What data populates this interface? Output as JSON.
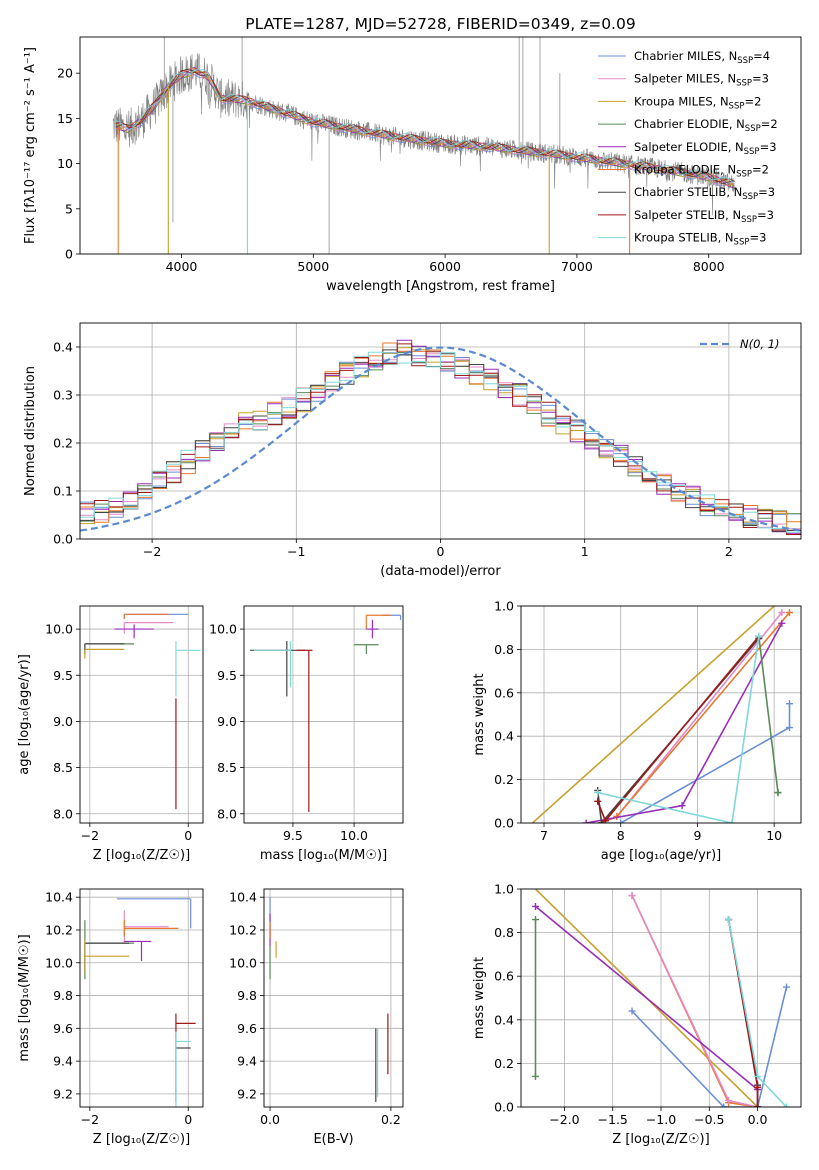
{
  "colors": [
    "#6a8fd8",
    "#e28bc8",
    "#c9a02c",
    "#5a8a5a",
    "#9a2db8",
    "#e8772e",
    "#444444",
    "#a01818",
    "#7fd8dc"
  ],
  "observed_color": "#808080",
  "gauss_color": "#5b8ad0",
  "chart_data": [
    {
      "type": "line",
      "title": "PLATE=1287, MJD=52728, FIBERID=0349, z=0.09",
      "xlabel": "wavelength [Angstrom, rest frame]",
      "ylabel": "Flux [fλ10⁻¹⁷ erg cm⁻² s⁻¹ A⁻¹]",
      "xlim": [
        3230,
        8700
      ],
      "ylim": [
        0,
        24
      ],
      "xticks": [
        4000,
        5000,
        6000,
        7000,
        8000
      ],
      "yticks": [
        0,
        5,
        10,
        15,
        20
      ],
      "grid": false,
      "legend_position": "top-right",
      "legend": [
        "Chabrier MILES, N_SSP=4",
        "Salpeter MILES, N_SSP=3",
        "Kroupa MILES, N_SSP=2",
        "Chabrier ELODIE, N_SSP=2",
        "Salpeter ELODIE, N_SSP=3",
        "Kroupa ELODIE, N_SSP=2",
        "Chabrier STELIB, N_SSP=3",
        "Salpeter STELIB, N_SSP=3",
        "Kroupa STELIB, N_SSP=3"
      ],
      "continuum": {
        "x": [
          3500,
          3600,
          3700,
          3800,
          3900,
          4000,
          4100,
          4200,
          4300,
          4500,
          4700,
          5000,
          5300,
          5600,
          6000,
          6300,
          6600,
          6900,
          7200,
          7500,
          7800,
          8000,
          8200
        ],
        "y": [
          14.2,
          13.8,
          14.8,
          16.5,
          18.5,
          19.8,
          20.3,
          19.6,
          17.2,
          17.0,
          16.0,
          14.6,
          13.8,
          13.0,
          12.2,
          11.9,
          11.4,
          10.9,
          10.3,
          9.7,
          9.0,
          8.5,
          7.6
        ]
      }
    },
    {
      "type": "step",
      "xlabel": "(data-model)/error",
      "ylabel": "Normed distribution",
      "xlim": [
        -2.5,
        2.5
      ],
      "ylim": [
        0,
        0.45
      ],
      "xticks": [
        -2,
        -1,
        0,
        1,
        2
      ],
      "yticks": [
        0.0,
        0.1,
        0.2,
        0.3,
        0.4
      ],
      "grid": true,
      "legend_position": "top-right",
      "legend": [
        "N(0, 1)"
      ],
      "bin_centers": [
        -2.45,
        -2.35,
        -2.25,
        -2.15,
        -2.05,
        -1.95,
        -1.85,
        -1.75,
        -1.65,
        -1.55,
        -1.45,
        -1.35,
        -1.25,
        -1.15,
        -1.05,
        -0.95,
        -0.85,
        -0.75,
        -0.65,
        -0.55,
        -0.45,
        -0.35,
        -0.25,
        -0.15,
        -0.05,
        0.05,
        0.15,
        0.25,
        0.35,
        0.45,
        0.55,
        0.65,
        0.75,
        0.85,
        0.95,
        1.05,
        1.15,
        1.25,
        1.35,
        1.45,
        1.55,
        1.65,
        1.75,
        1.85,
        1.95,
        2.05,
        2.15,
        2.25,
        2.35,
        2.45
      ],
      "envelope": [
        0.055,
        0.06,
        0.07,
        0.085,
        0.1,
        0.12,
        0.14,
        0.16,
        0.18,
        0.2,
        0.22,
        0.24,
        0.25,
        0.26,
        0.275,
        0.29,
        0.31,
        0.33,
        0.345,
        0.36,
        0.375,
        0.385,
        0.39,
        0.38,
        0.37,
        0.365,
        0.355,
        0.34,
        0.33,
        0.315,
        0.3,
        0.28,
        0.26,
        0.24,
        0.225,
        0.205,
        0.19,
        0.17,
        0.15,
        0.13,
        0.115,
        0.1,
        0.085,
        0.072,
        0.06,
        0.05,
        0.045,
        0.04,
        0.035,
        0.03
      ]
    },
    {
      "type": "errorbar",
      "xlabel": "Z [log₁₀(Z/Z☉)]",
      "ylabel": "age  [log₁₀(age/yr)]",
      "xlim": [
        -2.2,
        0.3
      ],
      "ylim": [
        7.9,
        10.25
      ],
      "xticks": [
        -2,
        0
      ],
      "yticks": [
        8.0,
        8.5,
        9.0,
        9.5,
        10.0
      ],
      "grid": true,
      "points": [
        {
          "c": 0,
          "x": -1.3,
          "y": 10.16,
          "xe": [
            0,
            1.3
          ],
          "ye": [
            0.05,
            0
          ]
        },
        {
          "c": 1,
          "x": -1.3,
          "y": 10.07,
          "xe": [
            0,
            1.0
          ],
          "ye": [
            0.12,
            0
          ]
        },
        {
          "c": 5,
          "x": -1.3,
          "y": 10.16,
          "xe": [
            0,
            0.9
          ],
          "ye": [
            0.05,
            0
          ]
        },
        {
          "c": 4,
          "x": -1.1,
          "y": 10.0,
          "xe": [
            0.4,
            0.4
          ],
          "ye": [
            0.1,
            0.05
          ]
        },
        {
          "c": 3,
          "x": -2.1,
          "y": 9.84,
          "xe": [
            0,
            1.0
          ],
          "ye": [
            0.1,
            0
          ]
        },
        {
          "c": 6,
          "x": -2.1,
          "y": 9.84,
          "xe": [
            0,
            0.8
          ],
          "ye": [
            0.12,
            0
          ]
        },
        {
          "c": 2,
          "x": -2.1,
          "y": 9.78,
          "xe": [
            0,
            0.8
          ],
          "ye": [
            0.1,
            0
          ]
        },
        {
          "c": 8,
          "x": -0.25,
          "y": 9.77,
          "xe": [
            0,
            0.5
          ],
          "ye": [
            0.5,
            0.1
          ]
        },
        {
          "c": 7,
          "x": -0.25,
          "y": 8.95,
          "xe": [
            0,
            0
          ],
          "ye": [
            0.9,
            0.3
          ]
        }
      ]
    },
    {
      "type": "errorbar",
      "xlabel": "mass [log₁₀(M/M☉)]",
      "xlim": [
        9.1,
        10.4
      ],
      "ylim": [
        7.9,
        10.25
      ],
      "xticks": [
        9.5,
        10.0
      ],
      "yticks": [
        8.0,
        8.5,
        9.0,
        9.5,
        10.0
      ],
      "grid": true,
      "points": [
        {
          "c": 0,
          "x": 10.38,
          "y": 10.15,
          "xe": [
            0.15,
            0
          ],
          "ye": [
            0.05,
            0
          ]
        },
        {
          "c": 5,
          "x": 10.1,
          "y": 10.15,
          "xe": [
            0,
            0.2
          ],
          "ye": [
            0.15,
            0
          ]
        },
        {
          "c": 4,
          "x": 10.15,
          "y": 10.0,
          "xe": [
            0.05,
            0.05
          ],
          "ye": [
            0.1,
            0.1
          ]
        },
        {
          "c": 3,
          "x": 10.1,
          "y": 9.83,
          "xe": [
            0.1,
            0.1
          ],
          "ye": [
            0.1,
            0
          ]
        },
        {
          "c": 6,
          "x": 9.45,
          "y": 9.77,
          "xe": [
            0.3,
            0.15
          ],
          "ye": [
            0.5,
            0.1
          ]
        },
        {
          "c": 8,
          "x": 9.48,
          "y": 9.77,
          "xe": [
            0.3,
            0
          ],
          "ye": [
            0.4,
            0.1
          ]
        },
        {
          "c": 7,
          "x": 9.63,
          "y": 9.77,
          "xe": [
            0.1,
            0.03
          ],
          "ye": [
            1.75,
            0
          ]
        }
      ]
    },
    {
      "type": "line",
      "xlabel": "age  [log₁₀(age/yr)]",
      "ylabel": "mass weight",
      "xlim": [
        6.7,
        10.35
      ],
      "ylim": [
        0,
        1
      ],
      "xticks": [
        7,
        8,
        9,
        10
      ],
      "yticks": [
        0.0,
        0.2,
        0.4,
        0.6,
        0.8,
        1.0
      ],
      "grid": true,
      "series": [
        {
          "c": 2,
          "x": [
            6.85,
            10.0
          ],
          "y": [
            0.0,
            1.0
          ],
          "markers": false
        },
        {
          "c": 0,
          "x": [
            7.75,
            8.0,
            10.2,
            10.2
          ],
          "y": [
            0.0,
            0.0,
            0.44,
            0.55
          ],
          "markers": true
        },
        {
          "c": 1,
          "x": [
            7.75,
            7.95,
            10.1
          ],
          "y": [
            0.0,
            0.03,
            0.97
          ],
          "markers": true
        },
        {
          "c": 5,
          "x": [
            7.75,
            7.95,
            10.2
          ],
          "y": [
            0.0,
            0.03,
            0.97
          ],
          "markers": true
        },
        {
          "c": 4,
          "x": [
            7.55,
            8.8,
            10.1
          ],
          "y": [
            0.0,
            0.08,
            0.92
          ],
          "markers": true
        },
        {
          "c": 6,
          "x": [
            7.7,
            7.75,
            9.8
          ],
          "y": [
            0.15,
            0.0,
            0.85
          ],
          "markers": true
        },
        {
          "c": 7,
          "x": [
            7.7,
            7.8,
            9.8
          ],
          "y": [
            0.1,
            0.01,
            0.86
          ],
          "markers": true
        },
        {
          "c": 3,
          "x": [
            9.8,
            10.05,
            10.05
          ],
          "y": [
            0.86,
            0.14,
            0.14
          ],
          "markers": true
        },
        {
          "c": 8,
          "x": [
            7.7,
            9.45,
            9.8
          ],
          "y": [
            0.14,
            0.0,
            0.86
          ],
          "markers": true
        }
      ]
    },
    {
      "type": "errorbar",
      "xlabel": "Z [log₁₀(Z/Z☉)]",
      "ylabel": "mass [log₁₀(M/M☉)]",
      "xlim": [
        -2.2,
        0.3
      ],
      "ylim": [
        9.12,
        10.45
      ],
      "xticks": [
        -2,
        0
      ],
      "yticks": [
        9.2,
        9.4,
        9.6,
        9.8,
        10.0,
        10.2,
        10.4
      ],
      "grid": true,
      "points": [
        {
          "c": 0,
          "x": 0.05,
          "y": 10.39,
          "xe": [
            1.5,
            0
          ],
          "ye": [
            0.18,
            0
          ]
        },
        {
          "c": 1,
          "x": -1.3,
          "y": 10.22,
          "xe": [
            0,
            0.9
          ],
          "ye": [
            0.1,
            0.1
          ]
        },
        {
          "c": 5,
          "x": -1.3,
          "y": 10.21,
          "xe": [
            0,
            1.1
          ],
          "ye": [
            0.05,
            0.05
          ]
        },
        {
          "c": 4,
          "x": -0.95,
          "y": 10.13,
          "xe": [
            0.35,
            0.2
          ],
          "ye": [
            0.12,
            0
          ]
        },
        {
          "c": 3,
          "x": -2.1,
          "y": 10.12,
          "xe": [
            0,
            1.0
          ],
          "ye": [
            0.22,
            0.14
          ]
        },
        {
          "c": 6,
          "x": -2.1,
          "y": 10.12,
          "xe": [
            0,
            0.9
          ],
          "ye": [
            0.18,
            0
          ]
        },
        {
          "c": 2,
          "x": -2.1,
          "y": 10.04,
          "xe": [
            0,
            0.9
          ],
          "ye": [
            0.1,
            0.1
          ]
        },
        {
          "c": 7,
          "x": -0.25,
          "y": 9.63,
          "xe": [
            0,
            0.4
          ],
          "ye": [
            0.08,
            0.06
          ]
        },
        {
          "c": 6,
          "x": -0.25,
          "y": 9.48,
          "xe": [
            0,
            0.3
          ],
          "ye": [
            0.33,
            0.08
          ]
        },
        {
          "c": 8,
          "x": -0.25,
          "y": 9.52,
          "xe": [
            0,
            0.3
          ],
          "ye": [
            0.4,
            0.06
          ]
        }
      ]
    },
    {
      "type": "errorbar",
      "xlabel": "E(B-V)",
      "xlim": [
        -0.01,
        0.22
      ],
      "ylim": [
        9.12,
        10.45
      ],
      "xticks": [
        0.0,
        0.2
      ],
      "yticks": [
        9.2,
        9.4,
        9.6,
        9.8,
        10.0,
        10.2,
        10.4
      ],
      "grid": true,
      "points": [
        {
          "c": 0,
          "x": 0.0,
          "y": 10.3,
          "xe": [
            0,
            0
          ],
          "ye": [
            0.15,
            0.1
          ]
        },
        {
          "c": 4,
          "x": 0.0,
          "y": 10.2,
          "xe": [
            0,
            0
          ],
          "ye": [
            0.1,
            0.1
          ]
        },
        {
          "c": 3,
          "x": 0.0,
          "y": 10.05,
          "xe": [
            0,
            0
          ],
          "ye": [
            0.15,
            0.05
          ]
        },
        {
          "c": 2,
          "x": 0.01,
          "y": 10.08,
          "xe": [
            0,
            0
          ],
          "ye": [
            0.05,
            0.05
          ]
        },
        {
          "c": 5,
          "x": 0.0,
          "y": 10.2,
          "xe": [
            0,
            0
          ],
          "ye": [
            0.05,
            0.05
          ]
        },
        {
          "c": 6,
          "x": 0.175,
          "y": 9.35,
          "xe": [
            0,
            0
          ],
          "ye": [
            0.2,
            0.25
          ]
        },
        {
          "c": 8,
          "x": 0.178,
          "y": 9.4,
          "xe": [
            0,
            0
          ],
          "ye": [
            0.22,
            0.2
          ]
        },
        {
          "c": 7,
          "x": 0.195,
          "y": 9.5,
          "xe": [
            0,
            0
          ],
          "ye": [
            0.18,
            0.19
          ]
        }
      ]
    },
    {
      "type": "line",
      "xlabel": "Z [log₁₀(Z/Z☉)]",
      "ylabel": "mass weight",
      "xlim": [
        -2.45,
        0.45
      ],
      "ylim": [
        0,
        1
      ],
      "xticks": [
        -2.0,
        -1.5,
        -1.0,
        -0.5,
        0.0
      ],
      "yticks": [
        0.0,
        0.2,
        0.4,
        0.6,
        0.8,
        1.0
      ],
      "grid": true,
      "series": [
        {
          "c": 2,
          "x": [
            -2.3,
            0.0
          ],
          "y": [
            1.0,
            0.0
          ],
          "markers": false
        },
        {
          "c": 0,
          "x": [
            -1.3,
            -0.35,
            0.0,
            0.3
          ],
          "y": [
            0.44,
            0.0,
            0.0,
            0.55
          ],
          "markers": true
        },
        {
          "c": 5,
          "x": [
            -1.3,
            -0.3,
            0.0
          ],
          "y": [
            0.97,
            0.02,
            0.0
          ],
          "markers": true
        },
        {
          "c": 1,
          "x": [
            -1.3,
            -0.3,
            0.0
          ],
          "y": [
            0.97,
            0.03,
            0.0
          ],
          "markers": true
        },
        {
          "c": 4,
          "x": [
            -2.3,
            0.0,
            0.0
          ],
          "y": [
            0.92,
            0.08,
            0.0
          ],
          "markers": true
        },
        {
          "c": 3,
          "x": [
            -2.3,
            -2.3
          ],
          "y": [
            0.86,
            0.14
          ],
          "markers": true
        },
        {
          "c": 6,
          "x": [
            -0.3,
            0.0,
            0.0
          ],
          "y": [
            0.86,
            0.1,
            0.0
          ],
          "markers": true
        },
        {
          "c": 7,
          "x": [
            -0.3,
            0.0,
            0.0
          ],
          "y": [
            0.86,
            0.09,
            0.0
          ],
          "markers": true
        },
        {
          "c": 8,
          "x": [
            -0.3,
            0.0,
            0.3
          ],
          "y": [
            0.86,
            0.14,
            0.0
          ],
          "markers": true
        }
      ]
    }
  ]
}
